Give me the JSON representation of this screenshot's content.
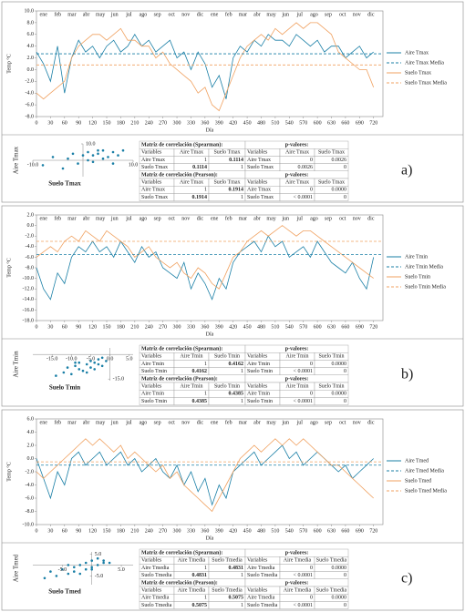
{
  "chart_data": [
    {
      "type": "line",
      "xlabel": "Día",
      "ylabel": "Temp °C",
      "month_labels": [
        "ene",
        "feb",
        "mar",
        "abr",
        "may",
        "jun",
        "jul",
        "ago",
        "sep",
        "oct",
        "nov",
        "dic"
      ],
      "x": [
        0,
        15,
        30,
        45,
        60,
        75,
        90,
        105,
        120,
        135,
        150,
        165,
        180,
        195,
        210,
        225,
        240,
        255,
        270,
        285,
        300,
        315,
        330,
        345,
        360,
        375,
        390,
        405,
        420,
        435,
        450,
        465,
        480,
        495,
        510,
        525,
        540,
        555,
        570,
        585,
        600,
        615,
        630,
        645,
        660,
        675,
        690,
        705,
        720
      ],
      "xlim": [
        0,
        740
      ],
      "xticks": [
        0,
        30,
        60,
        90,
        120,
        150,
        180,
        210,
        240,
        270,
        300,
        330,
        360,
        390,
        420,
        450,
        480,
        510,
        540,
        570,
        600,
        630,
        660,
        690,
        720
      ],
      "ylim": [
        -8,
        10
      ],
      "yticks": [
        {
          "value": 10,
          "label": "10.0"
        },
        {
          "value": 8,
          "label": "8.0"
        },
        {
          "value": 6,
          "label": "6.0"
        },
        {
          "value": 4,
          "label": "4.0"
        },
        {
          "value": 2,
          "label": "2.0"
        },
        {
          "value": 0,
          "label": "0.0"
        },
        {
          "value": -2,
          "label": "-2.0"
        },
        {
          "value": -4,
          "label": "-4.0"
        },
        {
          "value": -6,
          "label": "-6.0"
        },
        {
          "value": -8,
          "label": "-8.0"
        }
      ],
      "series": [
        {
          "name": "Aire Tmax",
          "color": "#1a7fa6",
          "values": [
            3,
            1,
            -2,
            4,
            -4,
            2,
            5,
            3,
            4,
            2,
            4,
            5,
            3,
            4,
            6,
            4,
            5,
            3,
            4,
            5,
            2,
            3,
            0,
            3,
            1,
            -3,
            -1,
            -5,
            2,
            4,
            3,
            5,
            4,
            6,
            5,
            5,
            4,
            6,
            5,
            4,
            5,
            3,
            4,
            4,
            2,
            3,
            4,
            2,
            3
          ]
        },
        {
          "name": "Suelo Tmax",
          "color": "#f0a160",
          "values": [
            -4,
            -5,
            -4,
            -3,
            -2,
            2,
            4,
            5,
            6,
            6,
            5,
            6,
            7,
            5,
            5,
            4,
            4,
            2,
            3,
            1,
            0,
            -1,
            -2,
            -4,
            -3,
            -6,
            -7,
            -4,
            -1,
            2,
            4,
            5,
            6,
            5,
            7,
            6,
            7,
            8,
            7,
            8,
            8,
            7,
            6,
            3,
            2,
            1,
            0,
            0,
            -3
          ]
        }
      ],
      "hlines": [
        {
          "name": "Aire Tmax Media",
          "color": "#1a7fa6",
          "value": 2.7
        },
        {
          "name": "Suelo Tmax Media",
          "color": "#f0a160",
          "value": 0.8
        }
      ]
    },
    {
      "type": "scatter",
      "xlabel": "Suelo Tmax",
      "ylabel": "Aire Tmax",
      "color": "#1a7fa6",
      "xlim": [
        -10,
        10
      ],
      "ylim": [
        -10,
        10
      ],
      "xticks": [
        {
          "value": -10,
          "label": "-10.0"
        },
        {
          "value": 10,
          "label": "10.0"
        }
      ],
      "yticks": [
        {
          "value": 10,
          "label": "10.0"
        }
      ],
      "x": [
        -8,
        -6,
        -4,
        -3,
        -2,
        -1,
        0,
        1,
        2,
        3,
        4,
        5,
        6,
        7,
        8,
        2,
        4,
        6,
        3,
        1
      ],
      "values": [
        -3,
        2,
        -5,
        1,
        4,
        -2,
        3,
        5,
        -1,
        4,
        6,
        2,
        5,
        3,
        6,
        3,
        1,
        -2,
        6,
        0
      ]
    },
    {
      "type": "line",
      "xlabel": "Día",
      "ylabel": "Temp °C",
      "month_labels": [
        "ene",
        "feb",
        "mar",
        "abr",
        "may",
        "jun",
        "jul",
        "ago",
        "sep",
        "oct",
        "nov",
        "dic"
      ],
      "x": [
        0,
        15,
        30,
        45,
        60,
        75,
        90,
        105,
        120,
        135,
        150,
        165,
        180,
        195,
        210,
        225,
        240,
        255,
        270,
        285,
        300,
        315,
        330,
        345,
        360,
        375,
        390,
        405,
        420,
        435,
        450,
        465,
        480,
        495,
        510,
        525,
        540,
        555,
        570,
        585,
        600,
        615,
        630,
        645,
        660,
        675,
        690,
        705,
        720
      ],
      "xlim": [
        0,
        740
      ],
      "xticks": [
        0,
        30,
        60,
        90,
        120,
        150,
        180,
        210,
        240,
        270,
        300,
        330,
        360,
        390,
        420,
        450,
        480,
        510,
        540,
        570,
        600,
        630,
        660,
        690,
        720
      ],
      "ylim": [
        -18,
        2
      ],
      "yticks": [
        {
          "value": 2,
          "label": "2.0"
        },
        {
          "value": 0,
          "label": "0.0"
        },
        {
          "value": -2,
          "label": "-2.0"
        },
        {
          "value": -4,
          "label": "-4.0"
        },
        {
          "value": -6,
          "label": "-6.0"
        },
        {
          "value": -8,
          "label": "-8.0"
        },
        {
          "value": -10,
          "label": "-10.0"
        },
        {
          "value": -12,
          "label": "-12.0"
        },
        {
          "value": -14,
          "label": "-14.0"
        },
        {
          "value": -16,
          "label": "-16.0"
        },
        {
          "value": -18,
          "label": "-18.0"
        }
      ],
      "series": [
        {
          "name": "Aire Tmin",
          "color": "#1a7fa6",
          "values": [
            -8,
            -12,
            -14,
            -9,
            -11,
            -6,
            -4,
            -5,
            -3,
            -5,
            -4,
            -6,
            -3,
            -5,
            -7,
            -4,
            -6,
            -5,
            -8,
            -9,
            -10,
            -7,
            -12,
            -9,
            -11,
            -14,
            -10,
            -12,
            -7,
            -5,
            -4,
            -3,
            -5,
            -2,
            -4,
            -3,
            -6,
            -5,
            -4,
            -6,
            -3,
            -5,
            -7,
            -8,
            -9,
            -7,
            -10,
            -12,
            -6
          ]
        },
        {
          "name": "Suelo Tmin",
          "color": "#f0a160",
          "values": [
            -6,
            -5,
            -4,
            -5,
            -3,
            -2,
            -3,
            -1,
            -2,
            -3,
            -1,
            -2,
            -3,
            -4,
            -6,
            -5,
            -4,
            -6,
            -7,
            -8,
            -7,
            -9,
            -10,
            -8,
            -9,
            -11,
            -12,
            -9,
            -6,
            -5,
            -3,
            -2,
            -1,
            -2,
            -1,
            0,
            -1,
            -2,
            -1,
            -1,
            -2,
            -3,
            -4,
            -5,
            -6,
            -7,
            -8,
            -9,
            -10
          ]
        }
      ],
      "hlines": [
        {
          "name": "Aire Tmin Media",
          "color": "#1a7fa6",
          "value": -5.5
        },
        {
          "name": "Suelo Tmin Media",
          "color": "#f0a160",
          "value": -3
        }
      ]
    },
    {
      "type": "scatter",
      "xlabel": "Suelo Tmin",
      "ylabel": "Aire Tmin",
      "color": "#1a7fa6",
      "xlim": [
        -20,
        6
      ],
      "ylim": [
        -16,
        4
      ],
      "xticks": [
        {
          "value": -15,
          "label": "-15.0"
        },
        {
          "value": -10,
          "label": "-10.0"
        },
        {
          "value": -5,
          "label": "-5.0"
        },
        {
          "value": 0,
          "label": "0.0"
        },
        {
          "value": 5,
          "label": "5.0"
        }
      ],
      "yticks": [
        {
          "value": -15,
          "label": "-15.0"
        }
      ],
      "x": [
        -14,
        -12,
        -11,
        -10,
        -9,
        -8,
        -8,
        -7,
        -6,
        -5,
        -5,
        -4,
        -3,
        -3,
        -2,
        -1,
        -6,
        -9,
        -4,
        -2
      ],
      "values": [
        -13,
        -11,
        -8,
        -12,
        -7,
        -9,
        -5,
        -10,
        -6,
        -4,
        -8,
        -5,
        -3,
        -6,
        -2,
        -4,
        -11,
        -5,
        -9,
        -7
      ]
    },
    {
      "type": "line",
      "xlabel": "Día",
      "ylabel": "Temp °C",
      "month_labels": [
        "ene",
        "feb",
        "mar",
        "abr",
        "may",
        "jun",
        "jul",
        "ago",
        "sep",
        "oct",
        "nov",
        "dic"
      ],
      "x": [
        0,
        15,
        30,
        45,
        60,
        75,
        90,
        105,
        120,
        135,
        150,
        165,
        180,
        195,
        210,
        225,
        240,
        255,
        270,
        285,
        300,
        315,
        330,
        345,
        360,
        375,
        390,
        405,
        420,
        435,
        450,
        465,
        480,
        495,
        510,
        525,
        540,
        555,
        570,
        585,
        600,
        615,
        630,
        645,
        660,
        675,
        690,
        705,
        720
      ],
      "xlim": [
        0,
        740
      ],
      "xticks": [
        0,
        30,
        60,
        90,
        120,
        150,
        180,
        210,
        240,
        270,
        300,
        330,
        360,
        390,
        420,
        450,
        480,
        510,
        540,
        570,
        600,
        630,
        660,
        690,
        720
      ],
      "ylim": [
        -10,
        6
      ],
      "yticks": [
        {
          "value": 6,
          "label": "6.0"
        },
        {
          "value": 4,
          "label": "4.0"
        },
        {
          "value": 2,
          "label": "2.0"
        },
        {
          "value": 0,
          "label": "0.0"
        },
        {
          "value": -2,
          "label": "-2.0"
        },
        {
          "value": -4,
          "label": "-4.0"
        },
        {
          "value": -6,
          "label": "-6.0"
        },
        {
          "value": -8,
          "label": "-8.0"
        },
        {
          "value": -10,
          "label": "-10.0"
        }
      ],
      "series": [
        {
          "name": "Aire Tmed",
          "color": "#1a7fa6",
          "values": [
            0,
            -3,
            -6,
            -2,
            -4,
            0,
            1,
            -1,
            0,
            1,
            -1,
            0,
            1,
            -1,
            0,
            -2,
            -1,
            0,
            -2,
            -3,
            -1,
            -4,
            -2,
            -5,
            -3,
            -7,
            -4,
            -6,
            -2,
            -1,
            0,
            1,
            -1,
            0,
            1,
            2,
            0,
            1,
            -1,
            0,
            1,
            0,
            -1,
            -2,
            -1,
            -3,
            -2,
            -1,
            0
          ]
        },
        {
          "name": "Suelo Tmed",
          "color": "#f0a160",
          "values": [
            -2,
            -3,
            -2,
            -1,
            0,
            1,
            2,
            3,
            2,
            3,
            2,
            1,
            2,
            0,
            1,
            0,
            -1,
            -2,
            -1,
            -3,
            -2,
            -4,
            -5,
            -6,
            -7,
            -8,
            -6,
            -4,
            -2,
            0,
            1,
            2,
            1,
            2,
            3,
            2,
            3,
            2,
            3,
            2,
            1,
            0,
            -1,
            -1,
            -2,
            -3,
            -4,
            -5,
            -6
          ]
        }
      ],
      "hlines": [
        {
          "name": "Aire Tmed Media",
          "color": "#1a7fa6",
          "value": -1
        },
        {
          "name": "Suelo Tmed Media",
          "color": "#f0a160",
          "value": -0.5
        }
      ]
    },
    {
      "type": "scatter",
      "xlabel": "Suelo Tmed",
      "ylabel": "Aire Tmed",
      "color": "#1a7fa6",
      "xlim": [
        -10,
        7
      ],
      "ylim": [
        -9,
        6
      ],
      "xticks": [
        {
          "value": -5,
          "label": "-5.0"
        },
        {
          "value": 5,
          "label": "5.0"
        }
      ],
      "yticks": [
        {
          "value": 5,
          "label": "5.0"
        },
        {
          "value": -5,
          "label": "-5.0"
        }
      ],
      "x": [
        -8,
        -7,
        -6,
        -5,
        -4,
        -3,
        -3,
        -2,
        -1,
        -1,
        0,
        0,
        1,
        1,
        2,
        2,
        3,
        -2,
        -4,
        0
      ],
      "values": [
        -6,
        -3,
        -5,
        -2,
        -4,
        -1,
        -3,
        0,
        -2,
        1,
        -1,
        2,
        0,
        3,
        1,
        2,
        1,
        -4,
        0,
        -2
      ]
    }
  ],
  "panels": [
    {
      "label": "a)",
      "rows": [
        [
          "Matriz de correlación (Spearman):",
          "p-valores:"
        ],
        [
          "Variables",
          "Aire Tmax",
          "Suelo Tmax",
          "Variables",
          "Aire Tmax",
          "Suelo Tmax"
        ],
        [
          "Aire Tmax",
          "1",
          "0.1114",
          "Aire Tmax",
          "0",
          "0.0026"
        ],
        [
          "Suelo Tmax",
          "0.1114",
          "1",
          "Suelo Tmax",
          "0.0026",
          "0"
        ],
        [
          "Matriz de correlación (Pearson):",
          "p-valores:"
        ],
        [
          "Variables",
          "Aire Tmax",
          "Suelo Tmax",
          "Variables",
          "Aire Tmax",
          "Suelo Tmax"
        ],
        [
          "Aire Tmax",
          "1",
          "0.1914",
          "Aire Tmax",
          "0",
          "0.0000"
        ],
        [
          "Suelo Tmax",
          "0.1914",
          "1",
          "Suelo Tmax",
          "< 0.0001",
          "0"
        ]
      ]
    },
    {
      "label": "b)",
      "rows": [
        [
          "Matriz de correlación (Spearman):",
          "p-valores:"
        ],
        [
          "Variables",
          "Aire Tmin",
          "Suelo Tmin",
          "Variables",
          "Aire Tmin",
          "Suelo Tmin"
        ],
        [
          "Aire Tmin",
          "1",
          "0.4162",
          "Aire Tmin",
          "0",
          "0.0000"
        ],
        [
          "Suelo Tmin",
          "0.4162",
          "1",
          "Suelo Tmin",
          "< 0.0001",
          "0"
        ],
        [
          "Matriz de correlación (Pearson):",
          "p-valores:"
        ],
        [
          "Variables",
          "Aire Tmin",
          "Suelo Tmin",
          "Variables",
          "Aire Tmin",
          "Suelo Tmin"
        ],
        [
          "Aire Tmin",
          "1",
          "0.4385",
          "Aire Tmin",
          "0",
          "0.0000"
        ],
        [
          "Suelo Tmin",
          "0.4385",
          "1",
          "Suelo Tmin",
          "< 0.0001",
          "0"
        ]
      ]
    },
    {
      "label": "c)",
      "rows": [
        [
          "Matriz de correlación (Spearman):",
          "p-valores:"
        ],
        [
          "Variables",
          "Aire Tmedia",
          "Suelo Tmedia",
          "Variables",
          "Aire Tmedia",
          "Suelo Tmedia"
        ],
        [
          "Aire Tmedia",
          "1",
          "0.4831",
          "Aire Tmedia",
          "0",
          "0.0000"
        ],
        [
          "Suelo Tmedia",
          "0.4831",
          "1",
          "Suelo Tmedia",
          "< 0.0001",
          "0"
        ],
        [
          "Matriz de correlación (Pearson):",
          "p-valores:"
        ],
        [
          "Variables",
          "Aire Tmedia",
          "Suelo Tmedia",
          "Variables",
          "Aire Tmedia",
          "Suelo Tmedia"
        ],
        [
          "Aire Tmedia",
          "1",
          "0.5075",
          "Aire Tmedia",
          "0",
          "0.0000"
        ],
        [
          "Suelo Tmedia",
          "0.5075",
          "1",
          "Suelo Tmedia",
          "< 0.0001",
          "0"
        ]
      ]
    }
  ]
}
